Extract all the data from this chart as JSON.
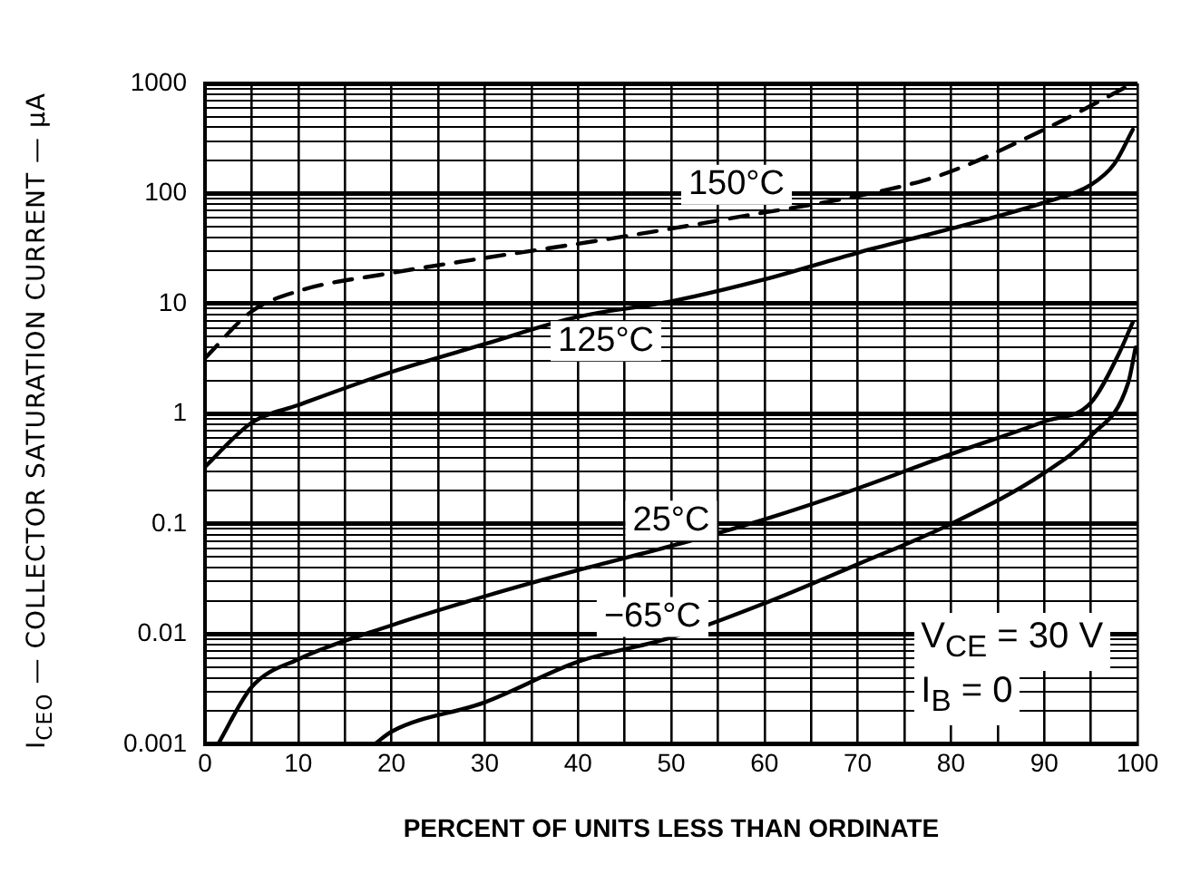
{
  "chart_data": {
    "type": "line",
    "xlabel": "PERCENT OF UNITS LESS THAN ORDINATE",
    "ylabel": "I$_{CEO}$ — COLLECTOR SATURATION CURRENT — μA",
    "log": "y",
    "grid": true,
    "legend": false,
    "marker": "none",
    "xlim": [
      0,
      100
    ],
    "ylim": [
      0.001,
      1000
    ],
    "xticks": [
      0,
      {
        "value": 5,
        "label": null
      },
      10,
      {
        "value": 15,
        "label": null
      },
      20,
      {
        "value": 25,
        "label": null
      },
      30,
      {
        "value": 35,
        "label": null
      },
      40,
      {
        "value": 45,
        "label": null
      },
      50,
      {
        "value": 55,
        "label": null
      },
      60,
      {
        "value": 65,
        "label": null
      },
      70,
      {
        "value": 75,
        "label": null
      },
      80,
      {
        "value": 85,
        "label": null
      },
      90,
      {
        "value": 95,
        "label": null
      },
      100
    ],
    "yticks": [
      0.001,
      {
        "value": 0.002,
        "label": null
      },
      {
        "value": 0.003,
        "label": null
      },
      {
        "value": 0.004,
        "label": null
      },
      {
        "value": 0.005,
        "label": null
      },
      {
        "value": 0.006,
        "label": null
      },
      {
        "value": 0.007,
        "label": null
      },
      {
        "value": 0.008,
        "label": null
      },
      {
        "value": 0.009,
        "label": null
      },
      0.01,
      {
        "value": 0.02,
        "label": null
      },
      {
        "value": 0.03,
        "label": null
      },
      {
        "value": 0.04,
        "label": null
      },
      {
        "value": 0.05,
        "label": null
      },
      {
        "value": 0.06,
        "label": null
      },
      {
        "value": 0.07,
        "label": null
      },
      {
        "value": 0.08,
        "label": null
      },
      {
        "value": 0.09,
        "label": null
      },
      0.1,
      {
        "value": 0.2,
        "label": null
      },
      {
        "value": 0.3,
        "label": null
      },
      {
        "value": 0.4,
        "label": null
      },
      {
        "value": 0.5,
        "label": null
      },
      {
        "value": 0.6,
        "label": null
      },
      {
        "value": 0.7,
        "label": null
      },
      {
        "value": 0.8,
        "label": null
      },
      {
        "value": 0.9,
        "label": null
      },
      1,
      {
        "value": 2,
        "label": null
      },
      {
        "value": 3,
        "label": null
      },
      {
        "value": 4,
        "label": null
      },
      {
        "value": 5,
        "label": null
      },
      {
        "value": 6,
        "label": null
      },
      {
        "value": 7,
        "label": null
      },
      {
        "value": 8,
        "label": null
      },
      {
        "value": 9,
        "label": null
      },
      10,
      {
        "value": 20,
        "label": null
      },
      {
        "value": 30,
        "label": null
      },
      {
        "value": 40,
        "label": null
      },
      {
        "value": 50,
        "label": null
      },
      {
        "value": 60,
        "label": null
      },
      {
        "value": 70,
        "label": null
      },
      {
        "value": 80,
        "label": null
      },
      {
        "value": 90,
        "label": null
      },
      100,
      {
        "value": 200,
        "label": null
      },
      {
        "value": 300,
        "label": null
      },
      {
        "value": 400,
        "label": null
      },
      {
        "value": 500,
        "label": null
      },
      {
        "value": 600,
        "label": null
      },
      {
        "value": 700,
        "label": null
      },
      {
        "value": 800,
        "label": null
      },
      {
        "value": 900,
        "label": null
      },
      1000
    ],
    "series": [
      {
        "name": "150°C",
        "color": "#000000",
        "line_style": "dashed",
        "x": [
          0,
          5,
          10,
          20,
          30,
          40,
          50,
          58,
          70,
          79,
          90.5,
          99.5
        ],
        "values": [
          3.2,
          8.5,
          13,
          19,
          26,
          35,
          48,
          63,
          95,
          148,
          400,
          1000
        ]
      },
      {
        "name": "125°C",
        "color": "#000000",
        "line_style": "solid",
        "x": [
          0,
          5,
          10,
          20,
          30,
          40,
          50,
          60,
          70,
          80,
          90,
          95,
          97.5,
          99.5
        ],
        "values": [
          0.33,
          0.83,
          1.2,
          2.4,
          4.3,
          7.6,
          10.5,
          16.6,
          29,
          48,
          83,
          120,
          185,
          380
        ]
      },
      {
        "name": "25°C",
        "color": "#000000",
        "line_style": "solid",
        "x": [
          1.4,
          5,
          10,
          20,
          30,
          40,
          50,
          60,
          70,
          80,
          90,
          95,
          98,
          99.5
        ],
        "values": [
          0.001,
          0.0033,
          0.0059,
          0.012,
          0.022,
          0.038,
          0.063,
          0.11,
          0.21,
          0.43,
          0.85,
          1.26,
          3.5,
          6.8
        ]
      },
      {
        "name": "−65°C",
        "color": "#000000",
        "line_style": "solid",
        "x": [
          18.2,
          20,
          30,
          40,
          50,
          60,
          70,
          80,
          90,
          95,
          99,
          99.8
        ],
        "values": [
          0.001,
          0.0013,
          0.0024,
          0.0056,
          0.0093,
          0.019,
          0.043,
          0.1,
          0.29,
          0.63,
          1.9,
          4
        ]
      }
    ],
    "annotations": [
      "V$_{CE}$ = 30 V",
      "I$_{B}$ = 0"
    ]
  }
}
